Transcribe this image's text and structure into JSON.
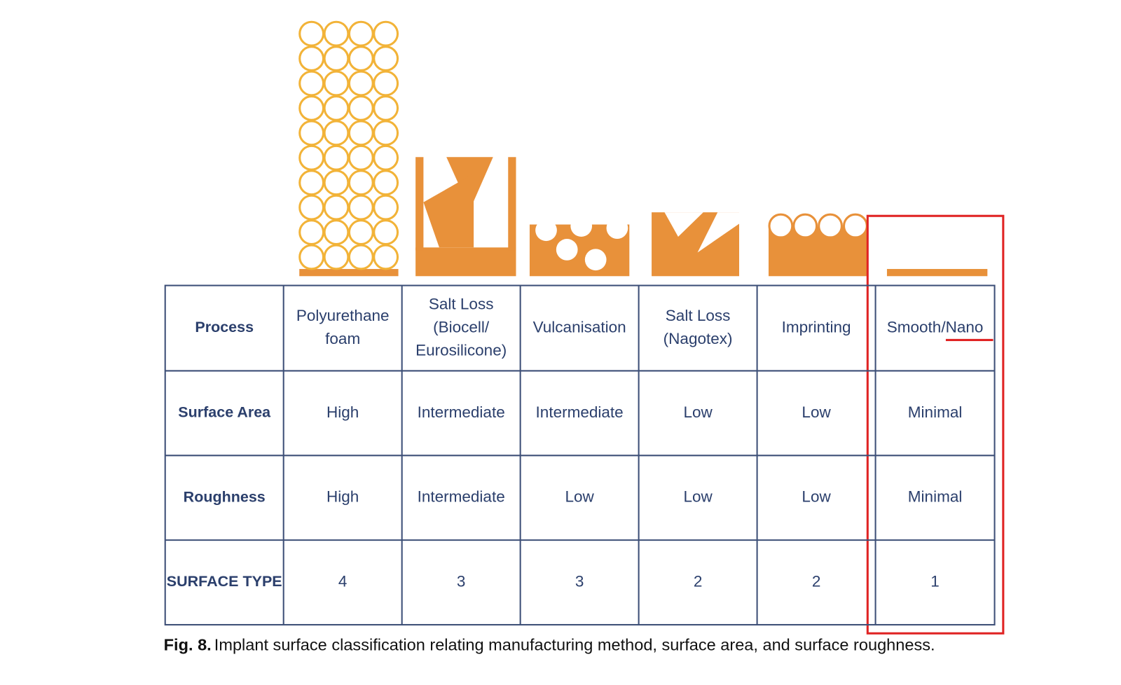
{
  "figure": {
    "table": {
      "rows": [
        {
          "label": "Process",
          "cells": [
            [
              "Polyurethane",
              "foam"
            ],
            [
              "Salt Loss",
              "(Biocell/",
              "Eurosilicone)"
            ],
            [
              "Vulcanisation"
            ],
            [
              "Salt Loss",
              "(Nagotex)"
            ],
            [
              "Imprinting"
            ],
            [
              "Smooth/Nano"
            ]
          ]
        },
        {
          "label": "Surface Area",
          "cells": [
            "High",
            "Intermediate",
            "Intermediate",
            "Low",
            "Low",
            "Minimal"
          ]
        },
        {
          "label": "Roughness",
          "cells": [
            "High",
            "Intermediate",
            "Low",
            "Low",
            "Low",
            "Minimal"
          ]
        },
        {
          "label": "SURFACE TYPE",
          "cells": [
            4,
            3,
            3,
            2,
            2,
            1
          ]
        }
      ]
    },
    "caption": {
      "label": "Fig. 8.",
      "text": "Implant surface classification relating manufacturing method, surface area, and surface roughness."
    }
  }
}
